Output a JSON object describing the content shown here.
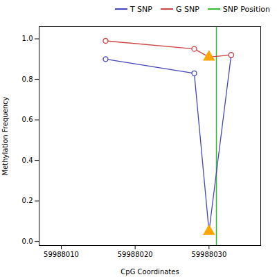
{
  "chart_data": {
    "type": "line",
    "xlabel": "CpG Coordinates",
    "ylabel": "Methylation Frequency",
    "x": [
      59988016,
      59988028,
      59988030,
      59988033
    ],
    "series": [
      {
        "name": "T SNP",
        "color": "#4444bb",
        "values": [
          0.9,
          0.83,
          0.05,
          0.92
        ],
        "marker": "circle",
        "triangle_index": 2
      },
      {
        "name": "G SNP",
        "color": "#cc4444",
        "values": [
          0.99,
          0.95,
          0.91,
          0.92
        ],
        "marker": "circle",
        "triangle_index": 2
      }
    ],
    "vlines": [
      {
        "name": "SNP Position",
        "x": 59988031,
        "color": "#33bb33"
      }
    ],
    "triangle_color": "#FFA500",
    "xlim": [
      59988007,
      59988037
    ],
    "ylim": [
      -0.02,
      1.06
    ],
    "xticks": [
      59988010,
      59988020,
      59988030
    ],
    "yticks": [
      {
        "value": 0.0,
        "label": "0.0"
      },
      0.2,
      0.4,
      0.6,
      0.8,
      {
        "value": 1.0,
        "label": "1.0"
      }
    ],
    "grid": false,
    "legend": "right"
  }
}
